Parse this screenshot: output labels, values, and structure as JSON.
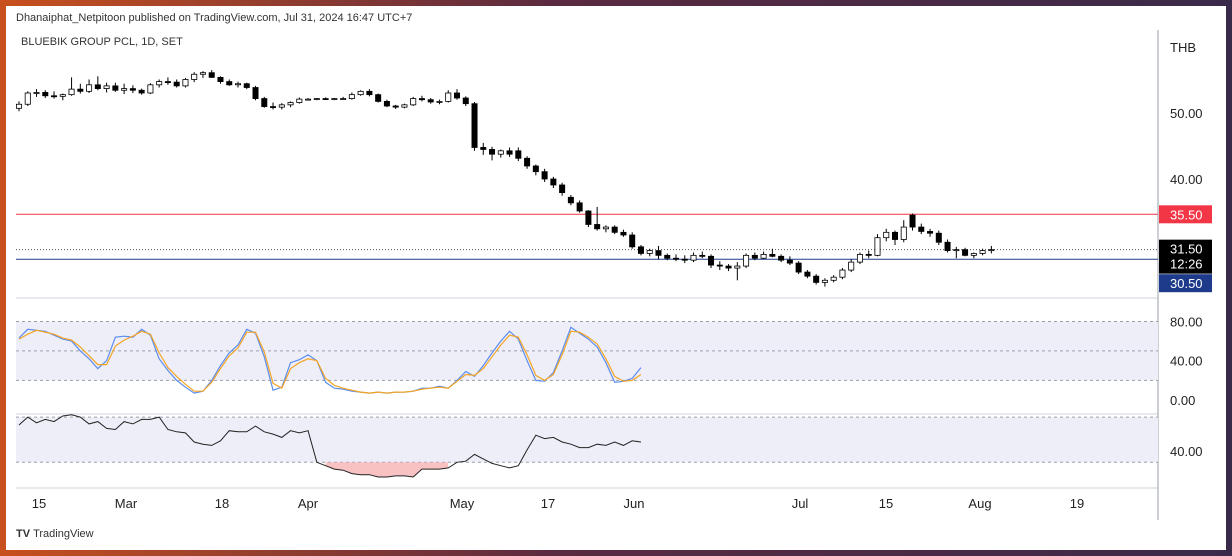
{
  "header": {
    "published": "Dhanaiphat_Netpitoon published on TradingView.com, Jul 31, 2024 16:47 UTC+7",
    "symbol": "BLUEBIK GROUP PCL, 1D, SET",
    "currency": "THB",
    "brand": "TradingView"
  },
  "colors": {
    "up_candle": "#ffffff",
    "down_candle": "#000000",
    "resistance_line": "#f23645",
    "support_line": "#1e3a8a",
    "stoch_k": "#5b8def",
    "stoch_d": "#f5a524",
    "rsi": "#222222",
    "rsi_oversold_fill": "#f6b3b3",
    "band_fill": "#eeeef8"
  },
  "chart_data": [
    {
      "type": "candlestick",
      "title": "BLUEBIK GROUP PCL, 1D, SET",
      "y_scale": "log",
      "y_ticks": [
        50,
        40
      ],
      "y_tick_labels": [
        "50.00",
        "40.00"
      ],
      "x_tick_labels": [
        "15",
        "Mar",
        "18",
        "Apr",
        "May",
        "17",
        "Jun",
        "Jul",
        "15",
        "Aug",
        "19"
      ],
      "last_price": "31.50",
      "countdown": "12:26",
      "horizontal_lines": [
        {
          "value": 35.5,
          "label": "35.50",
          "color": "#f23645"
        },
        {
          "value": 30.5,
          "label": "30.50",
          "color": "#1e3a8a"
        }
      ],
      "candles": [
        {
          "o": 50.8,
          "h": 52.0,
          "l": 50.3,
          "c": 51.5
        },
        {
          "o": 51.5,
          "h": 53.8,
          "l": 51.2,
          "c": 53.5
        },
        {
          "o": 53.5,
          "h": 54.2,
          "l": 52.8,
          "c": 53.6
        },
        {
          "o": 53.6,
          "h": 54.0,
          "l": 52.6,
          "c": 53.0
        },
        {
          "o": 53.0,
          "h": 53.8,
          "l": 52.5,
          "c": 52.9
        },
        {
          "o": 52.9,
          "h": 53.4,
          "l": 52.2,
          "c": 53.2
        },
        {
          "o": 53.2,
          "h": 56.4,
          "l": 53.0,
          "c": 54.2
        },
        {
          "o": 54.2,
          "h": 55.2,
          "l": 53.4,
          "c": 53.8
        },
        {
          "o": 53.8,
          "h": 56.0,
          "l": 53.5,
          "c": 55.0
        },
        {
          "o": 55.0,
          "h": 56.6,
          "l": 54.0,
          "c": 54.3
        },
        {
          "o": 54.3,
          "h": 55.4,
          "l": 53.6,
          "c": 54.8
        },
        {
          "o": 54.8,
          "h": 55.4,
          "l": 53.7,
          "c": 54.0
        },
        {
          "o": 54.0,
          "h": 55.2,
          "l": 53.3,
          "c": 54.3
        },
        {
          "o": 54.3,
          "h": 54.9,
          "l": 53.5,
          "c": 54.0
        },
        {
          "o": 54.0,
          "h": 54.3,
          "l": 53.2,
          "c": 53.5
        },
        {
          "o": 53.5,
          "h": 55.3,
          "l": 53.3,
          "c": 55.0
        },
        {
          "o": 55.0,
          "h": 56.0,
          "l": 54.5,
          "c": 55.6
        },
        {
          "o": 55.6,
          "h": 56.4,
          "l": 55.0,
          "c": 55.5
        },
        {
          "o": 55.5,
          "h": 56.0,
          "l": 54.5,
          "c": 54.8
        },
        {
          "o": 54.8,
          "h": 56.3,
          "l": 54.5,
          "c": 56.0
        },
        {
          "o": 56.0,
          "h": 57.4,
          "l": 55.5,
          "c": 57.0
        },
        {
          "o": 57.0,
          "h": 57.6,
          "l": 56.3,
          "c": 57.3
        },
        {
          "o": 57.3,
          "h": 57.8,
          "l": 56.3,
          "c": 56.4
        },
        {
          "o": 56.4,
          "h": 56.6,
          "l": 55.2,
          "c": 55.6
        },
        {
          "o": 55.6,
          "h": 56.0,
          "l": 54.8,
          "c": 55.0
        },
        {
          "o": 55.0,
          "h": 55.6,
          "l": 54.5,
          "c": 55.2
        },
        {
          "o": 55.2,
          "h": 55.4,
          "l": 54.2,
          "c": 54.5
        },
        {
          "o": 54.5,
          "h": 54.8,
          "l": 52.2,
          "c": 52.5
        },
        {
          "o": 52.5,
          "h": 52.8,
          "l": 50.9,
          "c": 51.1
        },
        {
          "o": 51.1,
          "h": 51.8,
          "l": 50.6,
          "c": 51.0
        },
        {
          "o": 51.0,
          "h": 51.7,
          "l": 50.6,
          "c": 51.4
        },
        {
          "o": 51.4,
          "h": 52.0,
          "l": 51.0,
          "c": 51.8
        },
        {
          "o": 51.8,
          "h": 52.7,
          "l": 51.6,
          "c": 52.4
        },
        {
          "o": 52.4,
          "h": 52.6,
          "l": 52.2,
          "c": 52.4
        },
        {
          "o": 52.4,
          "h": 52.6,
          "l": 52.2,
          "c": 52.5
        },
        {
          "o": 52.5,
          "h": 52.7,
          "l": 52.3,
          "c": 52.4
        },
        {
          "o": 52.4,
          "h": 52.6,
          "l": 52.2,
          "c": 52.5
        },
        {
          "o": 52.5,
          "h": 52.8,
          "l": 52.3,
          "c": 52.5
        },
        {
          "o": 52.5,
          "h": 53.6,
          "l": 52.3,
          "c": 53.2
        },
        {
          "o": 53.2,
          "h": 54.0,
          "l": 53.0,
          "c": 53.8
        },
        {
          "o": 53.8,
          "h": 54.2,
          "l": 52.9,
          "c": 53.2
        },
        {
          "o": 53.2,
          "h": 53.4,
          "l": 51.8,
          "c": 52.0
        },
        {
          "o": 52.0,
          "h": 52.3,
          "l": 51.0,
          "c": 51.2
        },
        {
          "o": 51.2,
          "h": 51.4,
          "l": 50.7,
          "c": 51.0
        },
        {
          "o": 51.0,
          "h": 51.6,
          "l": 50.8,
          "c": 51.4
        },
        {
          "o": 51.4,
          "h": 52.8,
          "l": 51.2,
          "c": 52.5
        },
        {
          "o": 52.5,
          "h": 53.0,
          "l": 52.0,
          "c": 52.3
        },
        {
          "o": 52.3,
          "h": 52.6,
          "l": 51.6,
          "c": 51.9
        },
        {
          "o": 51.9,
          "h": 52.3,
          "l": 51.5,
          "c": 52.0
        },
        {
          "o": 52.0,
          "h": 54.0,
          "l": 51.8,
          "c": 53.5
        },
        {
          "o": 53.5,
          "h": 54.2,
          "l": 52.3,
          "c": 52.6
        },
        {
          "o": 52.6,
          "h": 52.9,
          "l": 51.2,
          "c": 51.6
        },
        {
          "o": 51.6,
          "h": 51.9,
          "l": 44.0,
          "c": 44.5
        },
        {
          "o": 44.5,
          "h": 45.2,
          "l": 43.4,
          "c": 44.2
        },
        {
          "o": 44.2,
          "h": 44.6,
          "l": 42.6,
          "c": 43.5
        },
        {
          "o": 43.5,
          "h": 44.2,
          "l": 43.0,
          "c": 44.0
        },
        {
          "o": 44.0,
          "h": 44.5,
          "l": 43.1,
          "c": 43.5
        },
        {
          "o": 44.0,
          "h": 44.5,
          "l": 42.5,
          "c": 42.9
        },
        {
          "o": 42.9,
          "h": 43.2,
          "l": 41.4,
          "c": 41.8
        },
        {
          "o": 41.8,
          "h": 42.0,
          "l": 40.5,
          "c": 41.0
        },
        {
          "o": 41.0,
          "h": 41.4,
          "l": 39.6,
          "c": 40.0
        },
        {
          "o": 40.0,
          "h": 40.3,
          "l": 38.8,
          "c": 39.2
        },
        {
          "o": 39.2,
          "h": 39.5,
          "l": 37.8,
          "c": 38.2
        },
        {
          "o": 37.6,
          "h": 37.9,
          "l": 36.6,
          "c": 36.9
        },
        {
          "o": 36.9,
          "h": 37.2,
          "l": 35.7,
          "c": 35.9
        },
        {
          "o": 35.9,
          "h": 36.0,
          "l": 34.0,
          "c": 34.3
        },
        {
          "o": 34.3,
          "h": 36.4,
          "l": 33.6,
          "c": 33.8
        },
        {
          "o": 33.8,
          "h": 34.2,
          "l": 33.4,
          "c": 34.0
        },
        {
          "o": 34.0,
          "h": 34.2,
          "l": 33.2,
          "c": 33.4
        },
        {
          "o": 33.4,
          "h": 33.7,
          "l": 32.9,
          "c": 33.1
        },
        {
          "o": 33.1,
          "h": 33.4,
          "l": 31.6,
          "c": 31.8
        },
        {
          "o": 31.8,
          "h": 32.0,
          "l": 30.9,
          "c": 31.1
        },
        {
          "o": 31.1,
          "h": 31.6,
          "l": 30.8,
          "c": 31.4
        },
        {
          "o": 31.4,
          "h": 31.9,
          "l": 30.5,
          "c": 30.9
        },
        {
          "o": 30.9,
          "h": 31.1,
          "l": 30.4,
          "c": 30.6
        },
        {
          "o": 30.6,
          "h": 31.0,
          "l": 30.3,
          "c": 30.5
        },
        {
          "o": 30.5,
          "h": 30.9,
          "l": 30.1,
          "c": 30.4
        },
        {
          "o": 30.4,
          "h": 31.2,
          "l": 30.2,
          "c": 30.9
        },
        {
          "o": 30.9,
          "h": 31.3,
          "l": 30.6,
          "c": 30.8
        },
        {
          "o": 30.8,
          "h": 31.0,
          "l": 29.6,
          "c": 29.9
        },
        {
          "o": 29.9,
          "h": 30.3,
          "l": 29.4,
          "c": 29.8
        },
        {
          "o": 29.8,
          "h": 30.0,
          "l": 29.3,
          "c": 29.6
        },
        {
          "o": 29.6,
          "h": 30.2,
          "l": 28.4,
          "c": 29.8
        },
        {
          "o": 29.8,
          "h": 31.1,
          "l": 29.6,
          "c": 30.9
        },
        {
          "o": 30.9,
          "h": 31.2,
          "l": 30.4,
          "c": 30.6
        },
        {
          "o": 30.6,
          "h": 31.3,
          "l": 30.5,
          "c": 31.0
        },
        {
          "o": 31.0,
          "h": 31.6,
          "l": 30.7,
          "c": 30.8
        },
        {
          "o": 30.8,
          "h": 31.0,
          "l": 30.2,
          "c": 30.4
        },
        {
          "o": 30.4,
          "h": 30.8,
          "l": 29.9,
          "c": 30.1
        },
        {
          "o": 30.1,
          "h": 30.3,
          "l": 29.0,
          "c": 29.2
        },
        {
          "o": 29.2,
          "h": 29.4,
          "l": 28.6,
          "c": 28.8
        },
        {
          "o": 28.8,
          "h": 29.0,
          "l": 28.0,
          "c": 28.2
        },
        {
          "o": 28.2,
          "h": 28.6,
          "l": 27.8,
          "c": 28.4
        },
        {
          "o": 28.4,
          "h": 28.9,
          "l": 28.2,
          "c": 28.7
        },
        {
          "o": 28.7,
          "h": 29.6,
          "l": 28.5,
          "c": 29.4
        },
        {
          "o": 29.4,
          "h": 30.5,
          "l": 29.2,
          "c": 30.2
        },
        {
          "o": 30.2,
          "h": 31.2,
          "l": 30.0,
          "c": 31.0
        },
        {
          "o": 31.0,
          "h": 31.4,
          "l": 30.6,
          "c": 30.9
        },
        {
          "o": 30.9,
          "h": 33.2,
          "l": 30.8,
          "c": 32.8
        },
        {
          "o": 32.8,
          "h": 33.8,
          "l": 32.4,
          "c": 33.4
        },
        {
          "o": 33.4,
          "h": 33.6,
          "l": 32.0,
          "c": 32.6
        },
        {
          "o": 32.6,
          "h": 34.8,
          "l": 32.3,
          "c": 34.0
        },
        {
          "o": 35.4,
          "h": 35.6,
          "l": 33.6,
          "c": 34.0
        },
        {
          "o": 34.0,
          "h": 34.4,
          "l": 33.2,
          "c": 33.5
        },
        {
          "o": 33.5,
          "h": 33.8,
          "l": 32.9,
          "c": 33.3
        },
        {
          "o": 33.3,
          "h": 33.6,
          "l": 32.0,
          "c": 32.3
        },
        {
          "o": 32.3,
          "h": 32.6,
          "l": 31.2,
          "c": 31.4
        },
        {
          "o": 31.4,
          "h": 31.8,
          "l": 30.6,
          "c": 31.5
        },
        {
          "o": 31.5,
          "h": 31.7,
          "l": 30.8,
          "c": 30.9
        },
        {
          "o": 30.9,
          "h": 31.2,
          "l": 30.6,
          "c": 31.1
        },
        {
          "o": 31.1,
          "h": 31.6,
          "l": 30.9,
          "c": 31.4
        },
        {
          "o": 31.4,
          "h": 31.9,
          "l": 31.1,
          "c": 31.5
        }
      ]
    },
    {
      "type": "line",
      "y_range": [
        0,
        100
      ],
      "y_ticks": [
        80,
        40,
        0
      ],
      "y_tick_labels": [
        "80.00",
        "40.00",
        "0.00"
      ],
      "band": [
        20,
        80
      ],
      "series": [
        {
          "values": [
            63,
            72,
            71,
            70,
            66,
            62,
            60,
            50,
            42,
            32,
            40,
            64,
            65,
            64,
            72,
            66,
            42,
            30,
            20,
            13,
            7,
            9,
            20,
            35,
            48,
            56,
            72,
            68,
            44,
            10,
            13,
            38,
            41,
            46,
            40,
            18,
            12,
            11,
            9,
            8,
            7,
            8,
            7,
            8,
            8,
            9,
            12,
            12,
            14,
            12,
            20,
            29,
            24,
            35,
            48,
            60,
            70,
            62,
            40,
            20,
            19,
            28,
            50,
            74,
            68,
            62,
            54,
            38,
            18,
            19,
            22,
            33
          ]
        },
        {
          "values": [
            62,
            67,
            71,
            69,
            67,
            63,
            61,
            54,
            45,
            36,
            36,
            55,
            61,
            65,
            70,
            67,
            48,
            33,
            24,
            16,
            9,
            9,
            18,
            32,
            45,
            53,
            69,
            69,
            49,
            17,
            12,
            32,
            38,
            42,
            40,
            22,
            15,
            12,
            10,
            8,
            7,
            8,
            7,
            8,
            8,
            9,
            11,
            12,
            13,
            12,
            19,
            26,
            25,
            32,
            44,
            56,
            66,
            64,
            46,
            25,
            20,
            26,
            46,
            70,
            69,
            64,
            57,
            42,
            24,
            19,
            20,
            26
          ]
        }
      ]
    },
    {
      "type": "line",
      "y_range": [
        15,
        90
      ],
      "y_ticks": [
        40
      ],
      "y_tick_labels": [
        "40.00"
      ],
      "band": [
        30,
        70
      ],
      "oversold_threshold": 30,
      "series": [
        {
          "values": [
            63,
            70,
            65,
            68,
            66,
            71,
            72,
            70,
            64,
            66,
            60,
            59,
            66,
            64,
            68,
            68,
            70,
            59,
            57,
            56,
            48,
            46,
            45,
            49,
            58,
            57,
            57,
            62,
            57,
            55,
            52,
            58,
            56,
            58,
            30,
            27,
            24,
            23,
            20,
            19,
            19,
            17,
            17,
            18,
            18,
            17,
            24,
            24,
            24,
            25,
            30,
            31,
            37,
            33,
            29,
            27,
            25,
            27,
            41,
            54,
            51,
            52,
            48,
            46,
            43,
            43,
            46,
            45,
            48,
            45,
            49,
            48
          ]
        }
      ]
    }
  ]
}
